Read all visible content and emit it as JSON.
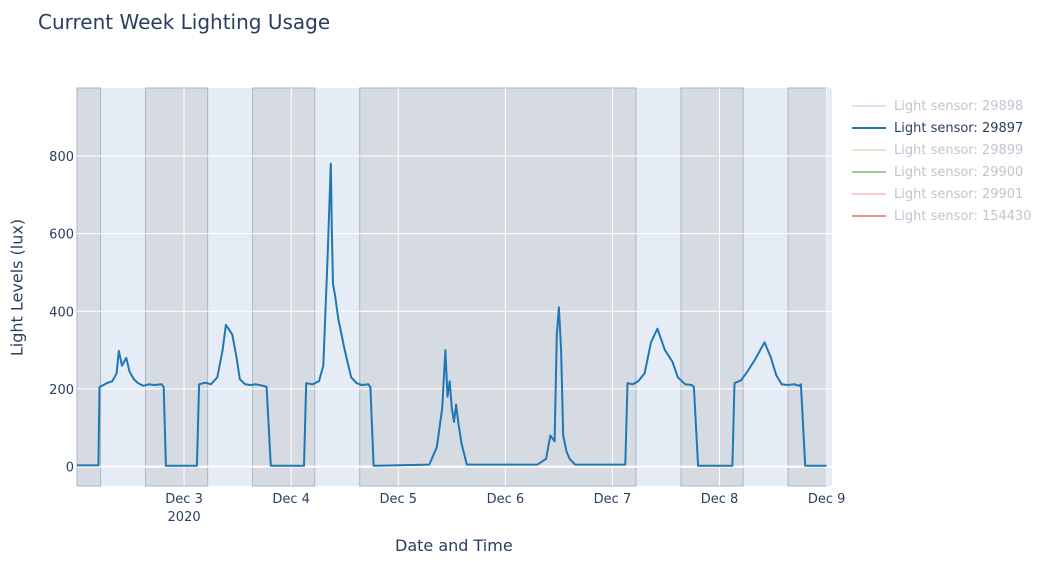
{
  "chart_data": {
    "type": "line",
    "title": "Current Week Lighting Usage",
    "xlabel": "Date and Time",
    "ylabel": "Light Levels (lux)",
    "x_tick_labels": [
      "Dec 3\n2020",
      "Dec 4",
      "Dec 5",
      "Dec 6",
      "Dec 7",
      "Dec 8",
      "Dec 9"
    ],
    "x_tick_days": [
      3,
      4,
      5,
      6,
      7,
      8,
      9
    ],
    "y_ticks": [
      0,
      200,
      400,
      600,
      800
    ],
    "xlim_days": [
      2.0,
      9.05
    ],
    "ylim": [
      -50,
      975
    ],
    "grid": true,
    "legend_position": "right",
    "shaded_periods_days": [
      [
        2.0,
        2.22
      ],
      [
        2.64,
        3.22
      ],
      [
        3.64,
        4.22
      ],
      [
        4.64,
        7.22
      ],
      [
        7.64,
        8.22
      ],
      [
        8.64,
        9.0
      ]
    ],
    "series": [
      {
        "name": "Light sensor: 29898",
        "visible": false,
        "color": "#aec7e8",
        "x": [],
        "y": []
      },
      {
        "name": "Light sensor: 29897",
        "visible": true,
        "color": "#1f77b4",
        "x": [
          2.0,
          2.2,
          2.21,
          2.26,
          2.28,
          2.33,
          2.37,
          2.39,
          2.42,
          2.46,
          2.49,
          2.53,
          2.57,
          2.62,
          2.67,
          2.72,
          2.79,
          2.81,
          2.83,
          3.12,
          3.14,
          3.2,
          3.25,
          3.31,
          3.36,
          3.39,
          3.45,
          3.49,
          3.52,
          3.57,
          3.62,
          3.67,
          3.74,
          3.77,
          3.81,
          4.12,
          4.14,
          4.2,
          4.26,
          4.3,
          4.34,
          4.37,
          4.38,
          4.39,
          4.41,
          4.44,
          4.5,
          4.56,
          4.61,
          4.66,
          4.72,
          4.74,
          4.77,
          5.29,
          5.36,
          5.41,
          5.44,
          5.46,
          5.48,
          5.5,
          5.52,
          5.54,
          5.56,
          5.59,
          5.64,
          5.7,
          6.16,
          6.3,
          6.38,
          6.42,
          6.46,
          6.48,
          6.5,
          6.52,
          6.54,
          6.57,
          6.6,
          6.65,
          7.0,
          7.12,
          7.14,
          7.19,
          7.24,
          7.3,
          7.36,
          7.42,
          7.49,
          7.56,
          7.61,
          7.68,
          7.74,
          7.76,
          7.8,
          8.12,
          8.14,
          8.2,
          8.26,
          8.33,
          8.42,
          8.48,
          8.53,
          8.58,
          8.63,
          8.7,
          8.74,
          8.76,
          8.8,
          9.0
        ],
        "y": [
          3,
          3,
          205,
          212,
          215,
          220,
          240,
          298,
          260,
          280,
          245,
          225,
          215,
          208,
          212,
          210,
          212,
          205,
          2,
          2,
          212,
          216,
          212,
          230,
          300,
          365,
          340,
          280,
          225,
          212,
          210,
          212,
          208,
          205,
          2,
          2,
          215,
          212,
          220,
          260,
          540,
          780,
          600,
          470,
          440,
          380,
          300,
          230,
          215,
          210,
          212,
          205,
          2,
          5,
          50,
          150,
          300,
          180,
          220,
          150,
          115,
          160,
          115,
          60,
          5,
          5,
          5,
          5,
          20,
          80,
          65,
          340,
          410,
          300,
          80,
          40,
          20,
          5,
          5,
          5,
          215,
          212,
          220,
          240,
          320,
          355,
          300,
          270,
          230,
          212,
          210,
          205,
          2,
          2,
          215,
          222,
          245,
          275,
          320,
          280,
          235,
          212,
          210,
          212,
          208,
          212,
          2,
          2
        ]
      },
      {
        "name": "Light sensor: 29899",
        "visible": false,
        "color": "#b5de9a",
        "x": [],
        "y": []
      },
      {
        "name": "Light sensor: 29900",
        "visible": false,
        "color": "#2ca02c",
        "x": [],
        "y": []
      },
      {
        "name": "Light sensor: 29901",
        "visible": false,
        "color": "#ff9896",
        "x": [],
        "y": []
      },
      {
        "name": "Light sensor: 154430",
        "visible": false,
        "color": "#d62728",
        "x": [],
        "y": []
      }
    ]
  }
}
